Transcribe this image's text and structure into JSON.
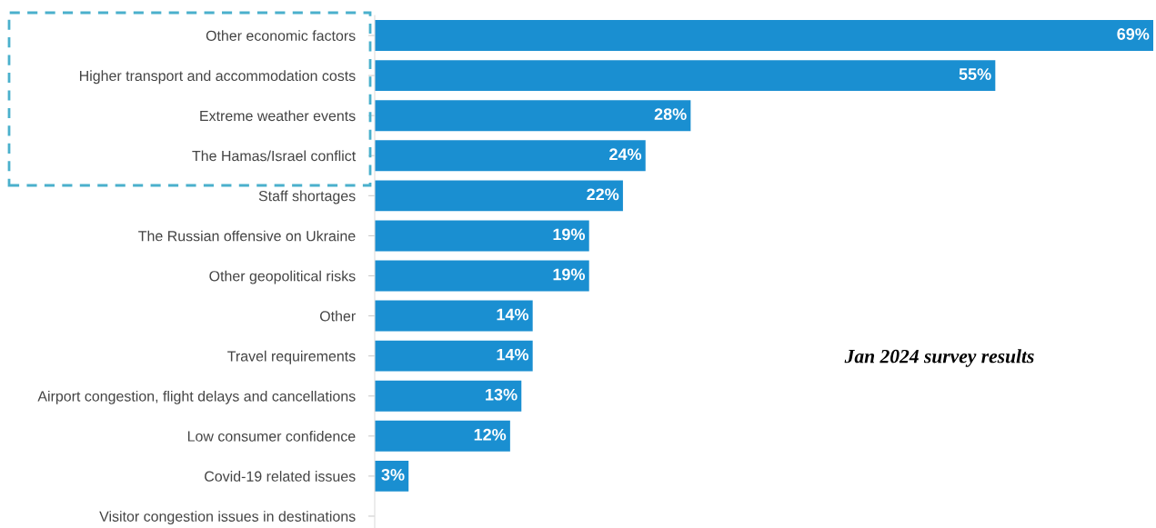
{
  "chart_data": {
    "type": "bar",
    "orientation": "horizontal",
    "categories": [
      "Other economic factors",
      "Higher transport and accommodation costs",
      "Extreme weather events",
      "The Hamas/Israel conflict",
      "Staff shortages",
      "The Russian offensive on Ukraine",
      "Other geopolitical risks",
      "Other",
      "Travel requirements",
      "Airport congestion, flight delays and cancellations",
      "Low consumer confidence",
      "Covid-19 related issues",
      "Visitor congestion issues in destinations"
    ],
    "values": [
      69,
      55,
      28,
      24,
      22,
      19,
      19,
      14,
      14,
      13,
      12,
      3,
      null
    ],
    "value_labels": [
      "69%",
      "55%",
      "28%",
      "24%",
      "22%",
      "19%",
      "19%",
      "14%",
      "14%",
      "13%",
      "12%",
      "3%",
      null
    ],
    "color": "#1a8fd1",
    "annotations": [
      "Jan 2024 survey results"
    ],
    "grid": false,
    "legend": false
  }
}
